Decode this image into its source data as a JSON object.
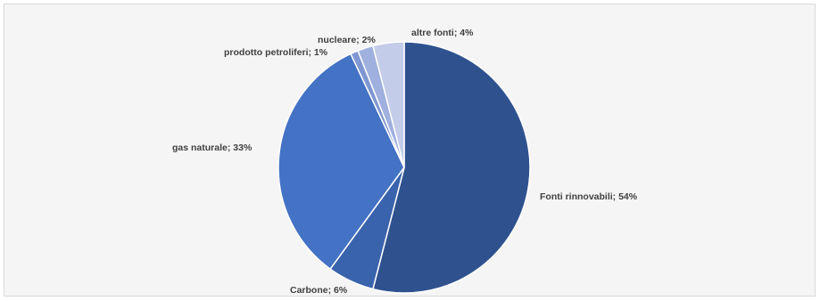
{
  "chart_data": {
    "type": "pie",
    "title": "",
    "slices": [
      {
        "label": "Fonti rinnovabili; 54%",
        "name": "Fonti rinnovabili",
        "value": 54,
        "color": "#2f528f"
      },
      {
        "label": "Carbone; 6%",
        "name": "Carbone",
        "value": 6,
        "color": "#3a63ad"
      },
      {
        "label": "gas naturale; 33%",
        "name": "gas naturale",
        "value": 33,
        "color": "#4472c4"
      },
      {
        "label": "prodotto petroliferi; 1%",
        "name": "prodotto petroliferi",
        "value": 1,
        "color": "#7f96d2"
      },
      {
        "label": "nucleare; 2%",
        "name": "nucleare",
        "value": 2,
        "color": "#9fb0de"
      },
      {
        "label": "altre fonti; 4%",
        "name": "altre fonti",
        "value": 4,
        "color": "#c3cce9"
      }
    ],
    "start": "12 o'clock",
    "direction": "clockwise",
    "legend": "none",
    "data_labels": "outside"
  }
}
